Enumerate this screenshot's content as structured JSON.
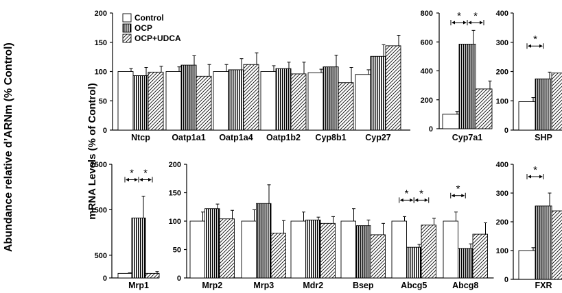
{
  "figure": {
    "outer_ylabel": "Abundance relative d’ARNm (% Control)",
    "inner_ylabel": "mRNA Levels (% of Control)"
  },
  "legend": {
    "entries": [
      "Control",
      "OCP",
      "OCP+UDCA"
    ]
  },
  "chart_data": [
    {
      "type": "bar",
      "categories": [
        "Ntcp",
        "Oatp1a1",
        "Oatp1a4",
        "Oatp1b2",
        "Cyp8b1",
        "Cyp27"
      ],
      "series": [
        {
          "name": "Control",
          "values": [
            100,
            100,
            100,
            100,
            98,
            95
          ],
          "errors": [
            5,
            8,
            12,
            10,
            6,
            8
          ]
        },
        {
          "name": "OCP",
          "values": [
            93,
            111,
            103,
            105,
            108,
            126
          ],
          "errors": [
            14,
            16,
            19,
            11,
            20,
            20
          ]
        },
        {
          "name": "OCP+UDCA",
          "values": [
            99,
            92,
            112,
            96,
            81,
            144
          ],
          "errors": [
            10,
            20,
            20,
            20,
            26,
            18
          ]
        }
      ],
      "yticks": [
        0,
        50,
        100,
        150,
        200
      ],
      "ylim": [
        0,
        200
      ],
      "significance": []
    },
    {
      "type": "bar",
      "categories": [
        "Cyp7a1"
      ],
      "series": [
        {
          "name": "Control",
          "values": [
            100
          ],
          "errors": [
            20
          ]
        },
        {
          "name": "OCP",
          "values": [
            585
          ],
          "errors": [
            95
          ]
        },
        {
          "name": "OCP+UDCA",
          "values": [
            275
          ],
          "errors": [
            55
          ]
        }
      ],
      "yticks": [
        0,
        200,
        400,
        600,
        800
      ],
      "ylim": [
        0,
        800
      ],
      "significance": [
        {
          "from": 0,
          "to": 1,
          "label": "*"
        },
        {
          "from": 1,
          "to": 2,
          "label": "*"
        }
      ]
    },
    {
      "type": "bar",
      "categories": [
        "SHP"
      ],
      "series": [
        {
          "name": "Control",
          "values": [
            97
          ],
          "errors": [
            14
          ]
        },
        {
          "name": "OCP",
          "values": [
            175
          ],
          "errors": [
            23
          ]
        },
        {
          "name": "OCP+UDCA",
          "values": [
            195
          ],
          "errors": [
            36
          ]
        }
      ],
      "yticks": [
        0,
        100,
        200,
        300,
        400
      ],
      "ylim": [
        0,
        400
      ],
      "significance": [
        {
          "from": 0,
          "to": 1,
          "label": "*"
        }
      ]
    },
    {
      "type": "bar",
      "categories": [
        "Mrp1"
      ],
      "series": [
        {
          "name": "Control",
          "values": [
            100
          ],
          "errors": [
            12
          ]
        },
        {
          "name": "OCP",
          "values": [
            1320
          ],
          "errors": [
            480
          ]
        },
        {
          "name": "OCP+UDCA",
          "values": [
            100
          ],
          "errors": [
            40
          ]
        }
      ],
      "yticks": [
        0,
        500,
        1500,
        2500
      ],
      "ylim": [
        0,
        2500
      ],
      "significance": [
        {
          "from": 0,
          "to": 1,
          "label": "*"
        },
        {
          "from": 1,
          "to": 2,
          "label": "*"
        }
      ]
    },
    {
      "type": "bar",
      "categories": [
        "Mrp2",
        "Mrp3",
        "Mdr2",
        "Bsep",
        "Abcg5",
        "Abcg8"
      ],
      "series": [
        {
          "name": "Control",
          "values": [
            100,
            100,
            100,
            100,
            100,
            100
          ],
          "errors": [
            16,
            20,
            16,
            22,
            8,
            16
          ]
        },
        {
          "name": "OCP",
          "values": [
            122,
            131,
            102,
            92,
            54,
            52
          ],
          "errors": [
            8,
            33,
            5,
            10,
            5,
            8
          ]
        },
        {
          "name": "OCP+UDCA",
          "values": [
            104,
            79,
            96,
            76,
            93,
            77
          ],
          "errors": [
            15,
            22,
            12,
            20,
            12,
            20
          ]
        }
      ],
      "yticks": [
        0,
        50,
        100,
        150,
        200
      ],
      "ylim": [
        0,
        200
      ],
      "significance": [
        {
          "from": 12,
          "to": 13,
          "label": "*"
        },
        {
          "from": 13,
          "to": 14,
          "label": "*"
        },
        {
          "from": 15,
          "to": 16,
          "label": "*"
        }
      ]
    },
    {
      "type": "bar",
      "categories": [
        "FXR"
      ],
      "series": [
        {
          "name": "Control",
          "values": [
            100
          ],
          "errors": [
            10
          ]
        },
        {
          "name": "OCP",
          "values": [
            255
          ],
          "errors": [
            45
          ]
        },
        {
          "name": "OCP+UDCA",
          "values": [
            238
          ],
          "errors": [
            60
          ]
        }
      ],
      "yticks": [
        0,
        100,
        200,
        300,
        400
      ],
      "ylim": [
        0,
        400
      ],
      "significance": [
        {
          "from": 0,
          "to": 1,
          "label": "*"
        }
      ]
    }
  ]
}
